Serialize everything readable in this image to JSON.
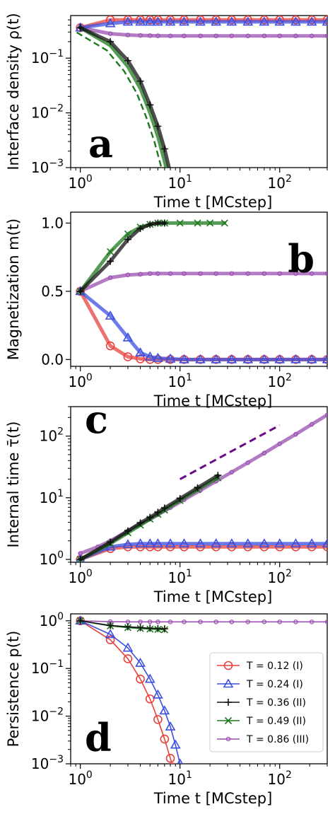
{
  "colors": {
    "red": "#e8413c",
    "blue": "#3c4fe0",
    "black": "#111111",
    "green": "#1c7a1c",
    "purple": "#9a4fb0",
    "dashed_purple": "#6a0a88"
  },
  "chart_data": [
    {
      "type": "line",
      "panel_label": "a",
      "xlabel": "Time t [MCstep]",
      "ylabel": "Interface density ρ(t)",
      "xscale": "log",
      "yscale": "log",
      "xlim": [
        0.8,
        300
      ],
      "ylim": [
        0.001,
        0.6
      ],
      "xticks": [
        {
          "v": 1,
          "label": "10^0"
        },
        {
          "v": 10,
          "label": "10^1"
        },
        {
          "v": 100,
          "label": "10^2"
        }
      ],
      "yticks": [
        {
          "v": 0.001,
          "label": "10^-3"
        },
        {
          "v": 0.01,
          "label": "10^-2"
        },
        {
          "v": 0.1,
          "label": "10^-1"
        }
      ],
      "series": [
        {
          "color_key": "red",
          "marker": "circle",
          "x": [
            1,
            2,
            3,
            4,
            5,
            6,
            8,
            11,
            16,
            23,
            33,
            48,
            70,
            100,
            145,
            210,
            300
          ],
          "y": [
            0.36,
            0.5,
            0.5,
            0.5,
            0.5,
            0.5,
            0.5,
            0.5,
            0.5,
            0.5,
            0.5,
            0.5,
            0.5,
            0.5,
            0.5,
            0.5,
            0.5
          ]
        },
        {
          "color_key": "blue",
          "marker": "triangle",
          "x": [
            1,
            2,
            3,
            4,
            5,
            6,
            8,
            11,
            16,
            23,
            33,
            48,
            70,
            100,
            145,
            210,
            300
          ],
          "y": [
            0.36,
            0.43,
            0.46,
            0.46,
            0.46,
            0.46,
            0.46,
            0.46,
            0.46,
            0.46,
            0.46,
            0.46,
            0.46,
            0.46,
            0.46,
            0.46,
            0.46
          ]
        },
        {
          "color_key": "black",
          "marker": "plus",
          "x": [
            1,
            2,
            3,
            4,
            5,
            6,
            7,
            8
          ],
          "y": [
            0.36,
            0.2,
            0.09,
            0.038,
            0.014,
            0.0057,
            0.0022,
            0.0008
          ]
        },
        {
          "color_key": "green",
          "marker": "none",
          "x": [
            1,
            2,
            3,
            4,
            5,
            6,
            7,
            8
          ],
          "y": [
            0.36,
            0.17,
            0.07,
            0.028,
            0.01,
            0.0037,
            0.0013,
            0.0005
          ]
        },
        {
          "color_key": "purple",
          "marker": "small-circle",
          "x": [
            1,
            2,
            3,
            4,
            5,
            6,
            8,
            11,
            16,
            23,
            33,
            48,
            70,
            100,
            145,
            210,
            300
          ],
          "y": [
            0.36,
            0.28,
            0.265,
            0.26,
            0.258,
            0.256,
            0.255,
            0.255,
            0.255,
            0.255,
            0.255,
            0.255,
            0.255,
            0.255,
            0.255,
            0.255,
            0.255
          ]
        }
      ]
    },
    {
      "type": "line",
      "panel_label": "b",
      "xlabel": "Time t [MCstep]",
      "ylabel": "Magnetization m(t)",
      "xscale": "log",
      "yscale": "linear",
      "xlim": [
        0.8,
        300
      ],
      "ylim": [
        -0.05,
        1.08
      ],
      "xticks": [
        {
          "v": 1,
          "label": "10^0"
        },
        {
          "v": 10,
          "label": "10^1"
        },
        {
          "v": 100,
          "label": "10^2"
        }
      ],
      "yticks": [
        {
          "v": 0.0,
          "label": "0.0"
        },
        {
          "v": 0.5,
          "label": "0.5"
        },
        {
          "v": 1.0,
          "label": "1.0"
        }
      ],
      "series": [
        {
          "color_key": "red",
          "marker": "circle",
          "x": [
            1,
            2,
            3,
            4,
            5,
            6,
            8,
            11,
            16,
            23,
            33,
            48,
            70,
            100,
            145,
            210,
            300
          ],
          "y": [
            0.5,
            0.1,
            0.02,
            0.005,
            0.0,
            0.0,
            0.0,
            0.0,
            0.0,
            0.0,
            0.0,
            0.0,
            0.0,
            0.0,
            0.0,
            0.0,
            0.0
          ]
        },
        {
          "color_key": "blue",
          "marker": "triangle",
          "x": [
            1,
            2,
            3,
            4,
            5,
            6,
            8,
            11,
            16,
            23,
            33,
            48,
            70,
            100,
            145,
            210,
            300
          ],
          "y": [
            0.5,
            0.32,
            0.16,
            0.05,
            0.02,
            0.01,
            0.005,
            0.0,
            0.0,
            0.0,
            0.0,
            0.0,
            0.0,
            0.0,
            0.0,
            0.0,
            0.0
          ]
        },
        {
          "color_key": "black",
          "marker": "plus",
          "x": [
            1,
            2,
            3,
            4,
            5,
            6,
            7
          ],
          "y": [
            0.5,
            0.72,
            0.88,
            0.96,
            0.99,
            1.0,
            1.0
          ]
        },
        {
          "color_key": "green",
          "marker": "cross",
          "x": [
            1,
            2,
            3,
            4,
            5,
            6,
            7,
            10,
            15,
            20,
            28
          ],
          "y": [
            0.5,
            0.79,
            0.92,
            0.97,
            0.99,
            1.0,
            1.0,
            1.0,
            1.0,
            1.0,
            1.0
          ]
        },
        {
          "color_key": "purple",
          "marker": "small-circle",
          "x": [
            1,
            2,
            3,
            4,
            5,
            6,
            8,
            11,
            16,
            23,
            33,
            48,
            70,
            100,
            145,
            210,
            300
          ],
          "y": [
            0.5,
            0.6,
            0.62,
            0.625,
            0.63,
            0.63,
            0.63,
            0.63,
            0.63,
            0.63,
            0.63,
            0.63,
            0.63,
            0.63,
            0.63,
            0.63,
            0.63
          ]
        }
      ]
    },
    {
      "type": "line",
      "panel_label": "c",
      "xlabel": "Time t [MCstep]",
      "ylabel": "Internal time τ̄(t)",
      "xscale": "log",
      "yscale": "log",
      "xlim": [
        0.8,
        300
      ],
      "ylim": [
        0.9,
        300
      ],
      "xticks": [
        {
          "v": 1,
          "label": "10^0"
        },
        {
          "v": 10,
          "label": "10^1"
        },
        {
          "v": 100,
          "label": "10^2"
        }
      ],
      "yticks": [
        {
          "v": 1,
          "label": "10^0"
        },
        {
          "v": 10,
          "label": "10^1"
        },
        {
          "v": 100,
          "label": "10^2"
        }
      ],
      "series": [
        {
          "color_key": "red",
          "marker": "circle",
          "x": [
            1,
            2,
            3,
            4,
            5,
            6,
            8,
            11,
            16,
            23,
            33,
            48,
            70,
            100,
            145,
            210,
            300
          ],
          "y": [
            1.0,
            1.5,
            1.6,
            1.6,
            1.6,
            1.6,
            1.6,
            1.6,
            1.6,
            1.6,
            1.6,
            1.6,
            1.6,
            1.6,
            1.6,
            1.6,
            1.6
          ]
        },
        {
          "color_key": "blue",
          "marker": "triangle",
          "x": [
            1,
            2,
            3,
            4,
            5,
            6,
            8,
            11,
            16,
            23,
            33,
            48,
            70,
            100,
            145,
            210,
            300
          ],
          "y": [
            1.0,
            1.6,
            1.75,
            1.8,
            1.8,
            1.8,
            1.8,
            1.8,
            1.8,
            1.8,
            1.8,
            1.8,
            1.8,
            1.8,
            1.8,
            1.8,
            1.8
          ]
        },
        {
          "color_key": "black",
          "marker": "plus",
          "x": [
            1,
            2,
            3,
            4,
            5,
            6,
            7,
            10,
            15,
            24
          ],
          "y": [
            1.0,
            1.9,
            2.9,
            3.9,
            4.8,
            5.8,
            6.8,
            9.7,
            14.5,
            23
          ]
        },
        {
          "color_key": "green",
          "marker": "cross",
          "x": [
            1,
            2,
            3,
            4,
            5,
            6,
            7,
            10,
            15,
            24
          ],
          "y": [
            1.0,
            1.8,
            2.7,
            3.6,
            4.5,
            5.4,
            6.3,
            9.0,
            13.5,
            21
          ]
        },
        {
          "color_key": "purple",
          "marker": "small-circle",
          "x": [
            1,
            1.5,
            2,
            3,
            4,
            5,
            6,
            8,
            11,
            16,
            23,
            33,
            48,
            70,
            100,
            145,
            210,
            300
          ],
          "y": [
            1.25,
            1.6,
            2.0,
            2.9,
            3.7,
            4.5,
            5.3,
            6.9,
            9.3,
            13.2,
            18.5,
            26,
            37,
            53,
            75,
            107,
            155,
            220
          ]
        }
      ],
      "reference_line": {
        "color_key": "dashed_purple",
        "x": [
          10,
          100
        ],
        "y": [
          20,
          150
        ]
      }
    },
    {
      "type": "line",
      "panel_label": "d",
      "xlabel": "Time t [MCstep]",
      "ylabel": "Persistence p(t)",
      "xscale": "log",
      "yscale": "log",
      "xlim": [
        0.8,
        300
      ],
      "ylim": [
        0.001,
        1.4
      ],
      "xticks": [
        {
          "v": 1,
          "label": "10^0"
        },
        {
          "v": 10,
          "label": "10^1"
        },
        {
          "v": 100,
          "label": "10^2"
        }
      ],
      "yticks": [
        {
          "v": 0.001,
          "label": "10^-3"
        },
        {
          "v": 0.01,
          "label": "10^-2"
        },
        {
          "v": 0.1,
          "label": "10^-1"
        },
        {
          "v": 1,
          "label": "10^0"
        }
      ],
      "legend_position": "right",
      "series": [
        {
          "name": "T = 0.12 (I)",
          "color_key": "red",
          "marker": "circle",
          "x": [
            1,
            2,
            3,
            4,
            5,
            6,
            7,
            8,
            8.5
          ],
          "y": [
            1.0,
            0.4,
            0.16,
            0.06,
            0.023,
            0.0085,
            0.0033,
            0.0013,
            0.00085
          ]
        },
        {
          "name": "T = 0.24 (I)",
          "color_key": "blue",
          "marker": "triangle",
          "x": [
            1,
            2,
            3,
            4,
            5,
            6,
            7,
            8,
            9,
            10
          ],
          "y": [
            1.0,
            0.52,
            0.27,
            0.13,
            0.06,
            0.028,
            0.013,
            0.006,
            0.0025,
            0.001
          ]
        },
        {
          "name": "T = 0.36 (II)",
          "color_key": "black",
          "marker": "plus",
          "x": [
            1,
            2,
            3,
            4,
            5,
            6,
            7
          ],
          "y": [
            1.0,
            0.8,
            0.75,
            0.72,
            0.7,
            0.69,
            0.68
          ]
        },
        {
          "name": "T = 0.49 (II)",
          "color_key": "green",
          "marker": "cross",
          "x": [
            1,
            2,
            3,
            4,
            5,
            6,
            7
          ],
          "y": [
            1.0,
            0.78,
            0.72,
            0.69,
            0.67,
            0.66,
            0.65
          ]
        },
        {
          "name": "T = 0.86 (III)",
          "color_key": "purple",
          "marker": "small-circle",
          "x": [
            1,
            2,
            3,
            4,
            5,
            6,
            8,
            11,
            16,
            23,
            33,
            48,
            70,
            100,
            145,
            210,
            300
          ],
          "y": [
            1.0,
            0.96,
            0.95,
            0.95,
            0.95,
            0.95,
            0.95,
            0.95,
            0.95,
            0.95,
            0.95,
            0.95,
            0.95,
            0.95,
            0.95,
            0.95,
            0.95
          ]
        }
      ]
    }
  ]
}
